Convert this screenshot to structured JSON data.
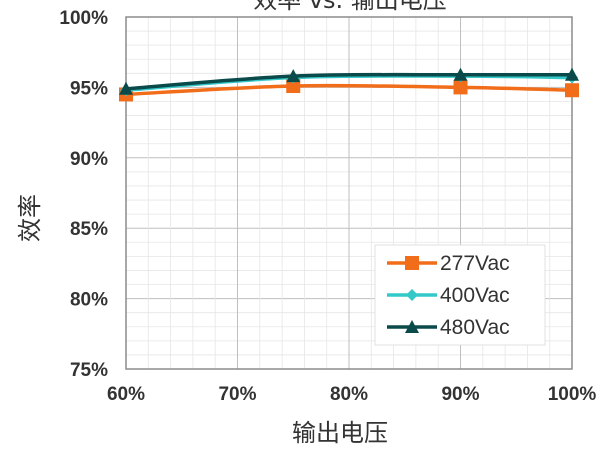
{
  "chart_data": {
    "type": "line",
    "title": "效率 vs. 输出电压",
    "xlabel": "输出电压",
    "ylabel": "效率",
    "x": [
      60,
      75,
      90,
      100
    ],
    "x_ticks": [
      60,
      70,
      80,
      90,
      100
    ],
    "x_tick_labels": [
      "60%",
      "70%",
      "80%",
      "90%",
      "100%"
    ],
    "xlim": [
      60,
      100
    ],
    "y_ticks": [
      75,
      80,
      85,
      90,
      95,
      100
    ],
    "y_tick_labels": [
      "75%",
      "80%",
      "85%",
      "90%",
      "95%",
      "100%"
    ],
    "ylim": [
      75,
      100
    ],
    "grid": true,
    "legend_position": "bottom-right",
    "series": [
      {
        "name": "277Vac",
        "color": "#f26d1a",
        "marker": "square",
        "values": [
          94.5,
          95.1,
          95.0,
          94.8
        ]
      },
      {
        "name": "400Vac",
        "color": "#33c9c9",
        "marker": "diamond",
        "values": [
          94.8,
          95.7,
          95.8,
          95.7
        ]
      },
      {
        "name": "480Vac",
        "color": "#0b4a4a",
        "marker": "triangle",
        "values": [
          94.9,
          95.8,
          95.9,
          95.9
        ]
      }
    ]
  }
}
